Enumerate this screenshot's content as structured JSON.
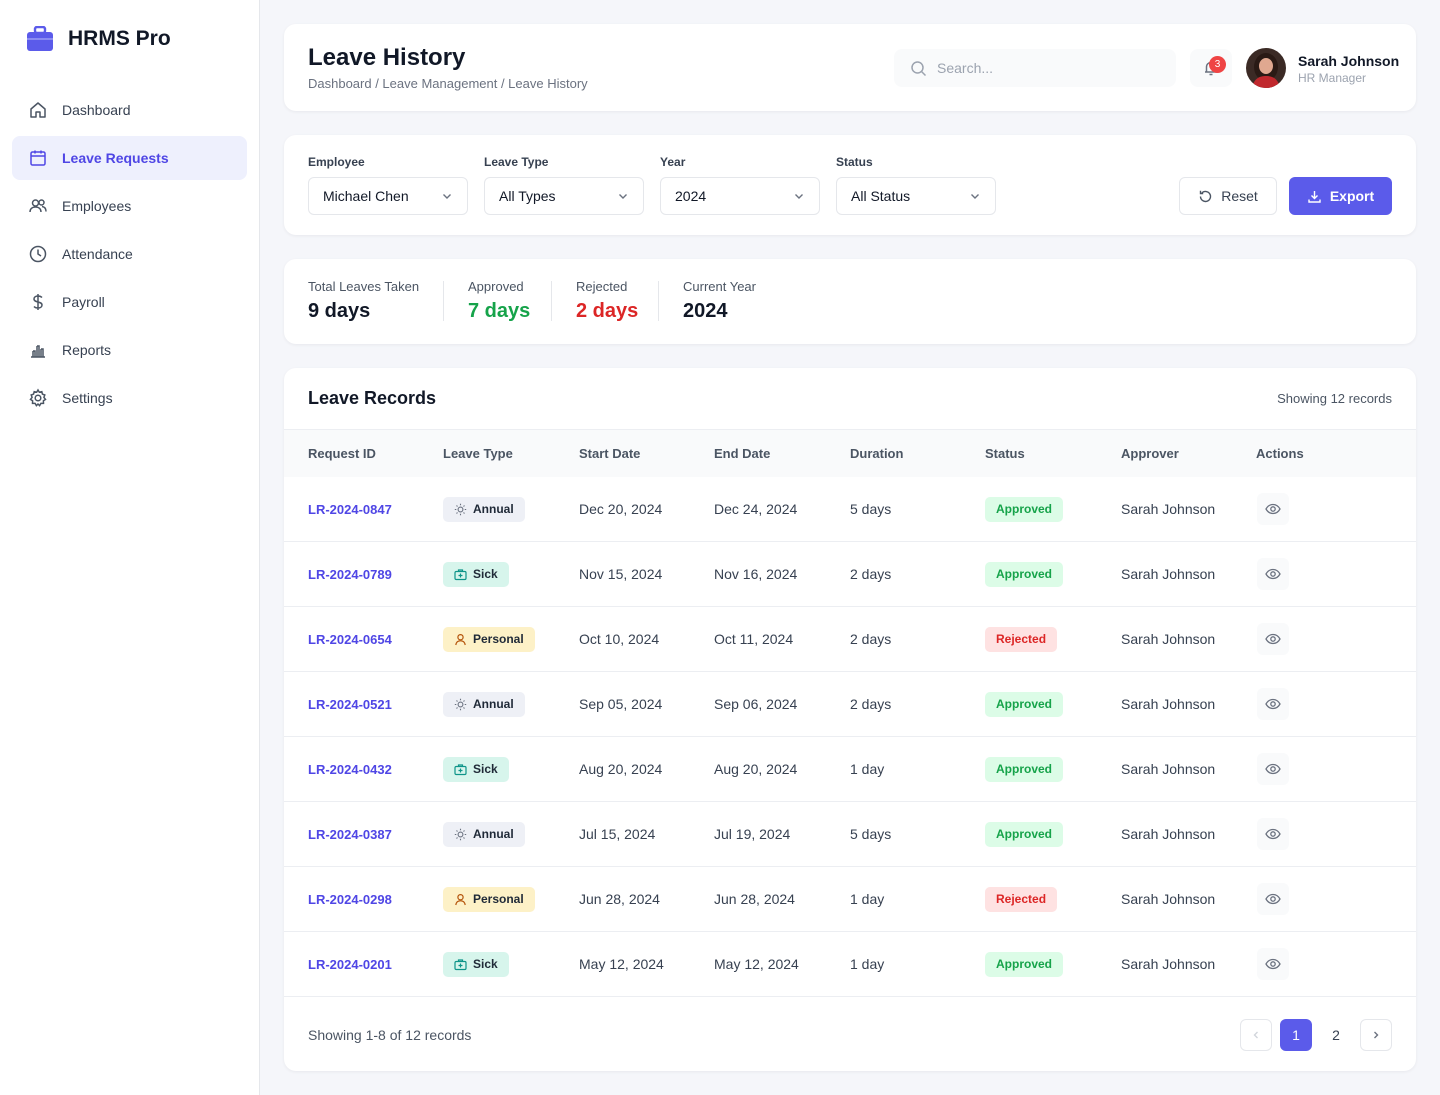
{
  "brand": {
    "name": "HRMS Pro"
  },
  "colors": {
    "accent": "#5b5bea",
    "approved": "#16a34a",
    "rejected": "#dc2626",
    "link": "#4f46e5"
  },
  "sidebar": {
    "items": [
      {
        "label": "Dashboard",
        "icon": "home-icon",
        "active": false
      },
      {
        "label": "Leave Requests",
        "icon": "calendar-icon",
        "active": true
      },
      {
        "label": "Employees",
        "icon": "users-icon",
        "active": false
      },
      {
        "label": "Attendance",
        "icon": "clock-icon",
        "active": false
      },
      {
        "label": "Payroll",
        "icon": "dollar-icon",
        "active": false
      },
      {
        "label": "Reports",
        "icon": "bar-chart-icon",
        "active": false
      },
      {
        "label": "Settings",
        "icon": "gear-icon",
        "active": false
      }
    ]
  },
  "header": {
    "title": "Leave History",
    "breadcrumb": "Dashboard / Leave Management / Leave History",
    "search_placeholder": "Search...",
    "notification_count": "3",
    "user_name": "Sarah Johnson",
    "user_role": "HR Manager"
  },
  "filters": {
    "employee": {
      "label": "Employee",
      "value": "Michael Chen"
    },
    "leave_type": {
      "label": "Leave Type",
      "value": "All Types"
    },
    "year": {
      "label": "Year",
      "value": "2024"
    },
    "status": {
      "label": "Status",
      "value": "All Status"
    },
    "reset_label": "Reset",
    "export_label": "Export"
  },
  "stats": [
    {
      "label": "Total Leaves Taken",
      "value": "9 days",
      "tone": "default"
    },
    {
      "label": "Approved",
      "value": "7 days",
      "tone": "approved"
    },
    {
      "label": "Rejected",
      "value": "2 days",
      "tone": "rejected"
    },
    {
      "label": "Current Year",
      "value": "2024",
      "tone": "default"
    }
  ],
  "records": {
    "title": "Leave Records",
    "count_label": "Showing 12 records",
    "columns": [
      "Request ID",
      "Leave Type",
      "Start Date",
      "End Date",
      "Duration",
      "Status",
      "Approver",
      "Actions"
    ],
    "rows": [
      {
        "id": "LR-2024-0847",
        "type": "Annual",
        "start": "Dec 20, 2024",
        "end": "Dec 24, 2024",
        "duration": "5 days",
        "status": "Approved",
        "approver": "Sarah Johnson"
      },
      {
        "id": "LR-2024-0789",
        "type": "Sick",
        "start": "Nov 15, 2024",
        "end": "Nov 16, 2024",
        "duration": "2 days",
        "status": "Approved",
        "approver": "Sarah Johnson"
      },
      {
        "id": "LR-2024-0654",
        "type": "Personal",
        "start": "Oct 10, 2024",
        "end": "Oct 11, 2024",
        "duration": "2 days",
        "status": "Rejected",
        "approver": "Sarah Johnson"
      },
      {
        "id": "LR-2024-0521",
        "type": "Annual",
        "start": "Sep 05, 2024",
        "end": "Sep 06, 2024",
        "duration": "2 days",
        "status": "Approved",
        "approver": "Sarah Johnson"
      },
      {
        "id": "LR-2024-0432",
        "type": "Sick",
        "start": "Aug 20, 2024",
        "end": "Aug 20, 2024",
        "duration": "1 day",
        "status": "Approved",
        "approver": "Sarah Johnson"
      },
      {
        "id": "LR-2024-0387",
        "type": "Annual",
        "start": "Jul 15, 2024",
        "end": "Jul 19, 2024",
        "duration": "5 days",
        "status": "Approved",
        "approver": "Sarah Johnson"
      },
      {
        "id": "LR-2024-0298",
        "type": "Personal",
        "start": "Jun 28, 2024",
        "end": "Jun 28, 2024",
        "duration": "1 day",
        "status": "Rejected",
        "approver": "Sarah Johnson"
      },
      {
        "id": "LR-2024-0201",
        "type": "Sick",
        "start": "May 12, 2024",
        "end": "May 12, 2024",
        "duration": "1 day",
        "status": "Approved",
        "approver": "Sarah Johnson"
      }
    ],
    "footer_text": "Showing 1-8 of 12 records",
    "pages": [
      "1",
      "2"
    ],
    "current_page": "1"
  }
}
